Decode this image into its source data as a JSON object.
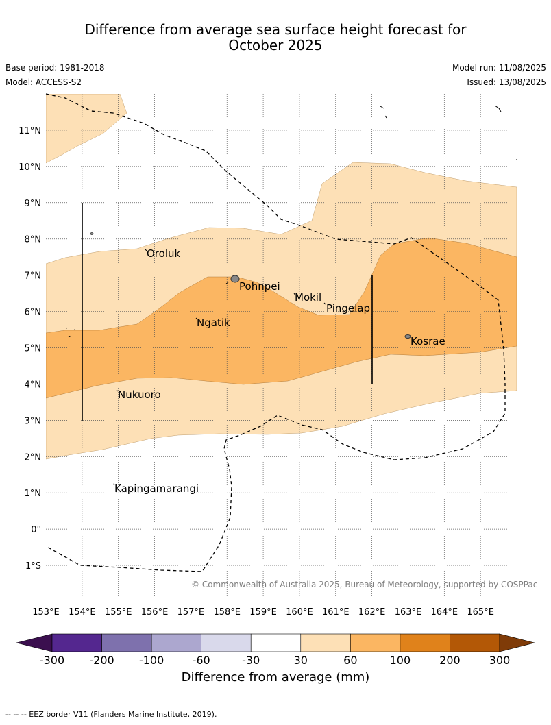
{
  "header": {
    "title_line1": "Difference from average sea surface height forecast for",
    "title_line2": "October 2025",
    "base_period": "Base period: 1981-2018",
    "model": "Model: ACCESS-S2",
    "model_run": "Model run: 11/08/2025",
    "issued": "Issued: 13/08/2025"
  },
  "map": {
    "lon_range": [
      153,
      166
    ],
    "lat_range": [
      -2,
      12
    ],
    "lat_labels": [
      "11°N",
      "10°N",
      "9°N",
      "8°N",
      "7°N",
      "6°N",
      "5°N",
      "4°N",
      "3°N",
      "2°N",
      "1°N",
      "0°",
      "1°S"
    ],
    "lon_labels": [
      "153°E",
      "154°E",
      "155°E",
      "156°E",
      "157°E",
      "158°E",
      "159°E",
      "160°E",
      "161°E",
      "162°E",
      "163°E",
      "164°E",
      "165°E"
    ],
    "places": [
      "Oroluk",
      "Pohnpei",
      "Mokil",
      "Pingelap",
      "Ngatik",
      "Kosrae",
      "Nukuoro",
      "Kapingamarangi"
    ],
    "copyright": "© Commonwealth of Australia 2025, Bureau of Meteorology, supported by COSPPac"
  },
  "colorbar": {
    "tick_labels": [
      "-300",
      "-200",
      "-100",
      "-60",
      "-30",
      "30",
      "60",
      "100",
      "200",
      "300"
    ],
    "colors": [
      "#3b0f4f",
      "#54278f",
      "#7e71ad",
      "#aca7cf",
      "#d9d9eb",
      "#ffffff",
      "#fde0b6",
      "#fbb662",
      "#e0821b",
      "#b35806",
      "#7f3b08"
    ],
    "label": "Difference from average (mm)"
  },
  "footer": {
    "eez_note": "--  --  -- EEZ border V11 (Flanders Marine Institute, 2019)."
  }
}
